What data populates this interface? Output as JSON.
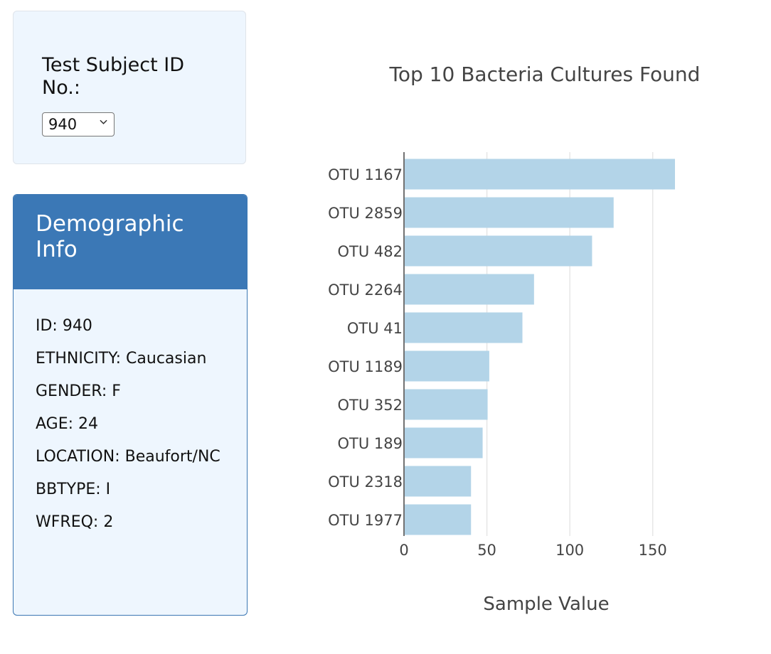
{
  "selector": {
    "label": "Test Subject ID No.:",
    "selected": "940"
  },
  "demographic": {
    "title": "Demographic Info",
    "rows": [
      "ID: 940",
      "ETHNICITY: Caucasian",
      "GENDER: F",
      "AGE: 24",
      "LOCATION: Beaufort/NC",
      "BBTYPE: I",
      "WFREQ: 2"
    ]
  },
  "colors": {
    "bar": "#b3d4e8",
    "panel_header": "#3b78b6",
    "panel_bg": "#eef6fe"
  },
  "chart_data": {
    "type": "bar",
    "orientation": "horizontal",
    "title": "Top 10 Bacteria Cultures Found",
    "xlabel": "Sample Value",
    "ylabel": "",
    "categories": [
      "OTU 1167",
      "OTU 2859",
      "OTU 482",
      "OTU 2264",
      "OTU 41",
      "OTU 1189",
      "OTU 352",
      "OTU 189",
      "OTU 2318",
      "OTU 1977"
    ],
    "values": [
      163,
      126,
      113,
      78,
      71,
      51,
      50,
      47,
      40,
      40
    ],
    "xticks": [
      0,
      50,
      100,
      150
    ],
    "xlim": [
      0,
      170
    ],
    "grid": true,
    "legend": "none"
  }
}
